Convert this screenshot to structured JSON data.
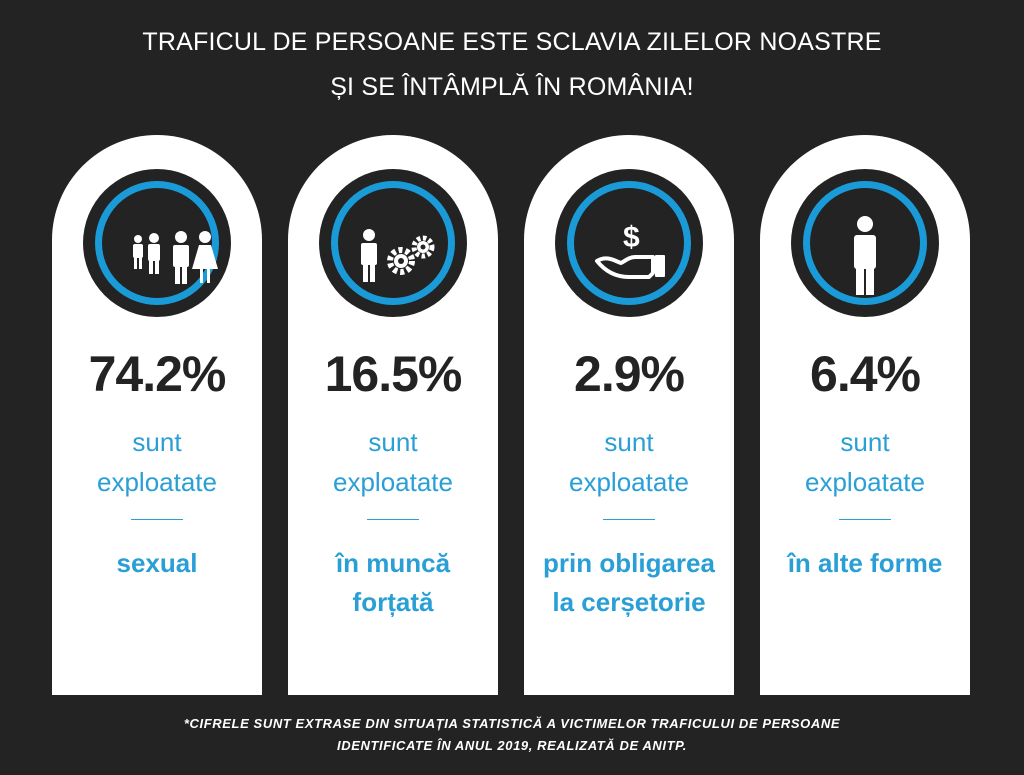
{
  "title": {
    "line1": "TRAFICUL DE PERSOANE ESTE SCLAVIA ZILELOR NOASTRE",
    "line2": "ȘI SE ÎNTÂMPLĂ ÎN ROMÂNIA!"
  },
  "cards": [
    {
      "icon": "family-icon",
      "percent": "74.2%",
      "value": 74.2,
      "sub1": "sunt",
      "sub2": "exploatate",
      "label": "sexual"
    },
    {
      "icon": "worker-gears-icon",
      "percent": "16.5%",
      "value": 16.5,
      "sub1": "sunt",
      "sub2": "exploatate",
      "label": "în muncă forțată"
    },
    {
      "icon": "hand-money-icon",
      "percent": "2.9%",
      "value": 2.9,
      "sub1": "sunt",
      "sub2": "exploatate",
      "label": "prin obligarea la cerșetorie"
    },
    {
      "icon": "person-icon",
      "percent": "6.4%",
      "value": 6.4,
      "sub1": "sunt",
      "sub2": "exploatate",
      "label": "în alte forme"
    }
  ],
  "footnote": {
    "line1": "*CIFRELE SUNT EXTRASE DIN SITUAȚIA STATISTICĂ A VICTIMELOR TRAFICULUI DE PERSOANE",
    "line2": "IDENTIFICATE ÎN ANUL 2019, REALIZATĂ DE ANITP."
  },
  "colors": {
    "background": "#232323",
    "accent": "#1a9ad6",
    "card": "#ffffff"
  }
}
